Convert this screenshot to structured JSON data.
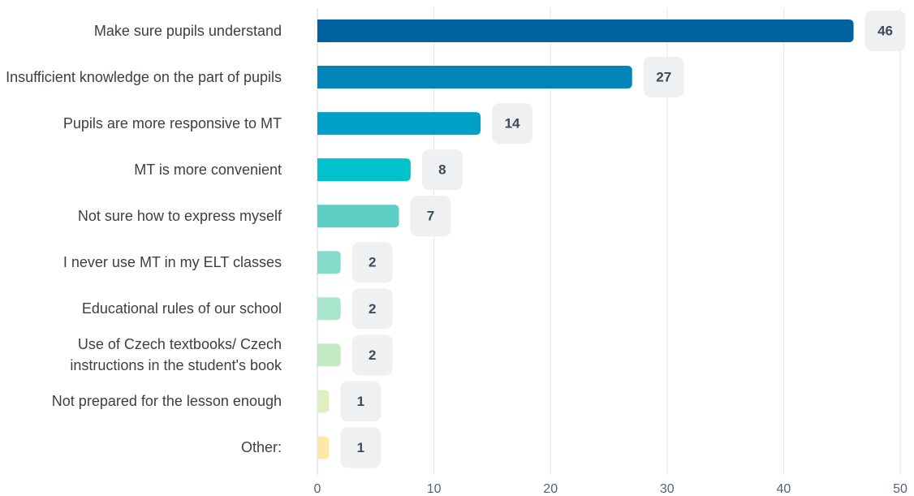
{
  "chart_data": {
    "type": "bar",
    "orientation": "horizontal",
    "categories": [
      "Make sure pupils understand",
      "Insufficient knowledge on the part of pupils",
      "Pupils are more responsive to MT",
      "MT is more convenient",
      "Not sure how to express myself",
      "I never use MT in my ELT classes",
      "Educational rules of our school",
      "Use of Czech textbooks/ Czech instructions in the student's book",
      "Not prepared for the lesson enough",
      "Other:"
    ],
    "values": [
      46,
      27,
      14,
      8,
      7,
      2,
      2,
      2,
      1,
      1
    ],
    "colors": [
      "#0063a0",
      "#0083b8",
      "#00a0c6",
      "#00c2cc",
      "#5ecdc4",
      "#86dac9",
      "#a9e5cc",
      "#c4eac4",
      "#dff0c0",
      "#fbe9a8"
    ],
    "xlim": [
      0,
      50
    ],
    "xticks": [
      0,
      10,
      20,
      30,
      40,
      50
    ],
    "grid": true
  }
}
